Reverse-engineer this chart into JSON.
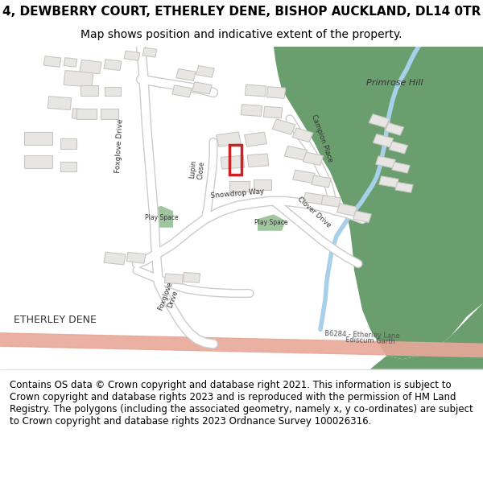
{
  "title": "4, DEWBERRY COURT, ETHERLEY DENE, BISHOP AUCKLAND, DL14 0TR",
  "subtitle": "Map shows position and indicative extent of the property.",
  "footer": "Contains OS data © Crown copyright and database right 2021. This information is subject to Crown copyright and database rights 2023 and is reproduced with the permission of HM Land Registry. The polygons (including the associated geometry, namely x, y co-ordinates) are subject to Crown copyright and database rights 2023 Ordnance Survey 100026316.",
  "bg_color": "#f5f5f0",
  "map_bg": "#f0eeea",
  "green_area_color": "#6a9e6e",
  "road_color": "#ffffff",
  "road_outline_color": "#cccccc",
  "road_salmon_color": "#e8a898",
  "building_color": "#e8e6e2",
  "building_outline": "#c8c6c2",
  "water_color": "#a8d0e8",
  "plot_color": "#cc2222",
  "play_space_color": "#8fbc8f",
  "title_fontsize": 11,
  "subtitle_fontsize": 10,
  "footer_fontsize": 8.5
}
